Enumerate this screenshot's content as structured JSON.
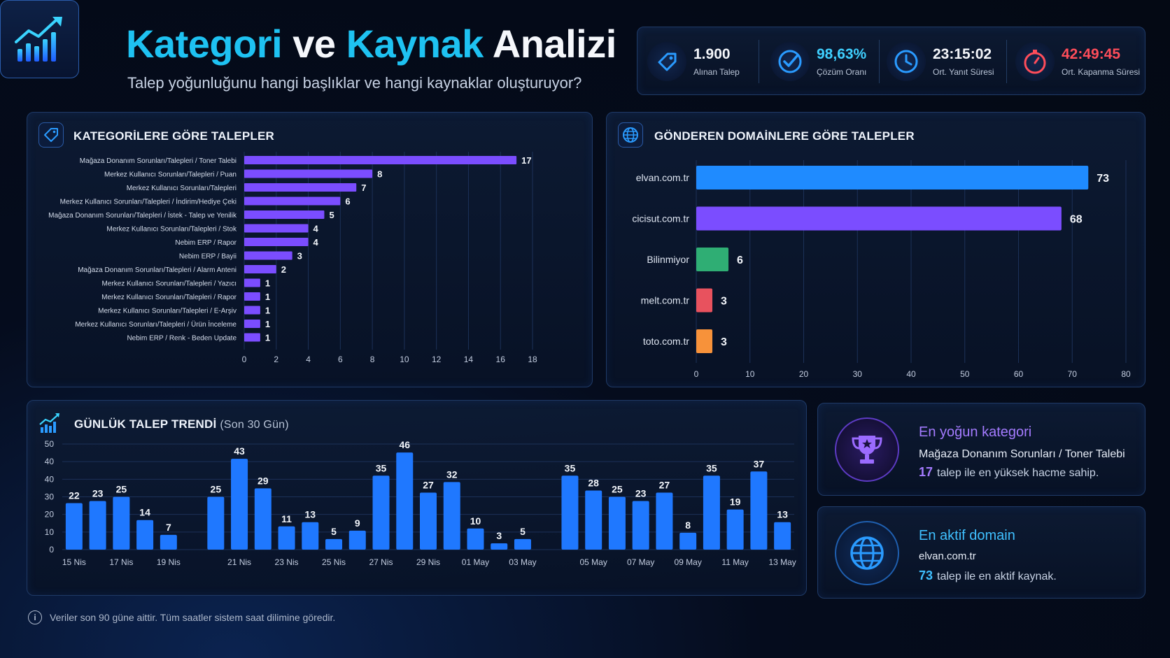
{
  "header": {
    "title_part1": "Kategori",
    "title_part2": "ve",
    "title_part3": "Kaynak",
    "title_part4": "Analizi",
    "subtitle": "Talep yoğunluğunu hangi başlıklar ve hangi kaynaklar oluşturuyor?"
  },
  "kpis": [
    {
      "value": "1.900",
      "label": "Alınan Talep",
      "icon": "tag-icon",
      "color": "#f4f6fa"
    },
    {
      "value": "98,63%",
      "label": "Çözüm Oranı",
      "icon": "check-circle-icon",
      "color": "#3fd0ff"
    },
    {
      "value": "23:15:02",
      "label": "Ort. Yanıt Süresi",
      "icon": "clock-icon",
      "color": "#f4f6fa"
    },
    {
      "value": "42:49:45",
      "label": "Ort. Kapanma Süresi",
      "icon": "stopwatch-icon",
      "color": "#ff4d5a"
    }
  ],
  "colors": {
    "accent_blue": "#1ec2f2",
    "purple": "#7b4dff",
    "bar_blue": "#1f78ff",
    "green": "#2fae74",
    "red": "#e8525e",
    "orange": "#f7923a"
  },
  "category_panel": {
    "title": "KATEGORİLERE GÖRE TALEPLER"
  },
  "domain_panel": {
    "title": "GÖNDEREN DOMAİNLERE GÖRE TALEPLER"
  },
  "trend_panel": {
    "title": "GÜNLÜK TALEP TRENDİ",
    "subtitle": "(Son 30 Gün)"
  },
  "chart_data": [
    {
      "type": "bar",
      "orientation": "horizontal",
      "title": "KATEGORİLERE GÖRE TALEPLER",
      "categories": [
        "Mağaza Donanım Sorunları/Talepleri / Toner Talebi",
        "Merkez Kullanıcı Sorunları/Talepleri / Puan",
        "Merkez Kullanıcı Sorunları/Talepleri",
        "Merkez Kullanıcı Sorunları/Talepleri / İndirim/Hediye Çeki",
        "Mağaza Donanım Sorunları/Talepleri / İstek - Talep ve Yenilik",
        "Merkez Kullanıcı Sorunları/Talepleri / Stok",
        "Nebim ERP / Rapor",
        "Nebim ERP / Bayii",
        "Mağaza Donanım Sorunları/Talepleri / Alarm Anteni",
        "Merkez Kullanıcı Sorunları/Talepleri / Yazıcı",
        "Merkez Kullanıcı Sorunları/Talepleri / Rapor",
        "Merkez Kullanıcı Sorunları/Talepleri / E-Arşiv",
        "Merkez Kullanıcı Sorunları/Talepleri / Ürün İnceleme",
        "Nebim ERP / Renk - Beden Update"
      ],
      "values": [
        17,
        8,
        7,
        6,
        5,
        4,
        4,
        3,
        2,
        1,
        1,
        1,
        1,
        1
      ],
      "xlim": [
        0,
        18
      ],
      "xticks": [
        0,
        2,
        4,
        6,
        8,
        10,
        12,
        14,
        16,
        18
      ],
      "color": "#7b4dff",
      "grid": true
    },
    {
      "type": "bar",
      "orientation": "horizontal",
      "title": "GÖNDEREN DOMAİNLERE GÖRE TALEPLER",
      "categories": [
        "elvan.com.tr",
        "cicisut.com.tr",
        "Bilinmiyor",
        "melt.com.tr",
        "toto.com.tr"
      ],
      "values": [
        73,
        68,
        6,
        3,
        3
      ],
      "colors": [
        "#1f8bff",
        "#7b4dff",
        "#2fae74",
        "#e8525e",
        "#f7923a"
      ],
      "xlim": [
        0,
        80
      ],
      "xticks": [
        0,
        10,
        20,
        30,
        40,
        50,
        60,
        70,
        80
      ],
      "grid": true
    },
    {
      "type": "bar",
      "title": "GÜNLÜK TALEP TRENDİ",
      "values": [
        22,
        23,
        25,
        14,
        7,
        null,
        25,
        43,
        29,
        11,
        13,
        5,
        9,
        35,
        46,
        27,
        32,
        10,
        3,
        5,
        null,
        35,
        28,
        25,
        23,
        27,
        8,
        35,
        19,
        37,
        13
      ],
      "tick_labels": [
        "15 Nis",
        "17 Nis",
        "19 Nis",
        "21 Nis",
        "23 Nis",
        "25 Nis",
        "27 Nis",
        "29 Nis",
        "01 May",
        "03 May",
        "05 May",
        "07 May",
        "09 May",
        "11 May",
        "13 May"
      ],
      "yticks": [
        "0",
        "10",
        "20",
        "30",
        "40",
        "40",
        "50"
      ],
      "ylim": [
        0,
        50
      ],
      "color": "#1f78ff",
      "grid": true
    }
  ],
  "insights": {
    "top_category": {
      "title": "En yoğun kategori",
      "name": "Mağaza Donanım Sorunları / Toner Talebi",
      "count": "17",
      "text": "talep ile en yüksek hacme sahip."
    },
    "top_domain": {
      "title": "En aktif domain",
      "name": "elvan.com.tr",
      "count": "73",
      "text": "talep ile en aktif kaynak."
    }
  },
  "footer": {
    "note": "Veriler son 90 güne aittir. Tüm saatler sistem saat dilimine göredir."
  }
}
